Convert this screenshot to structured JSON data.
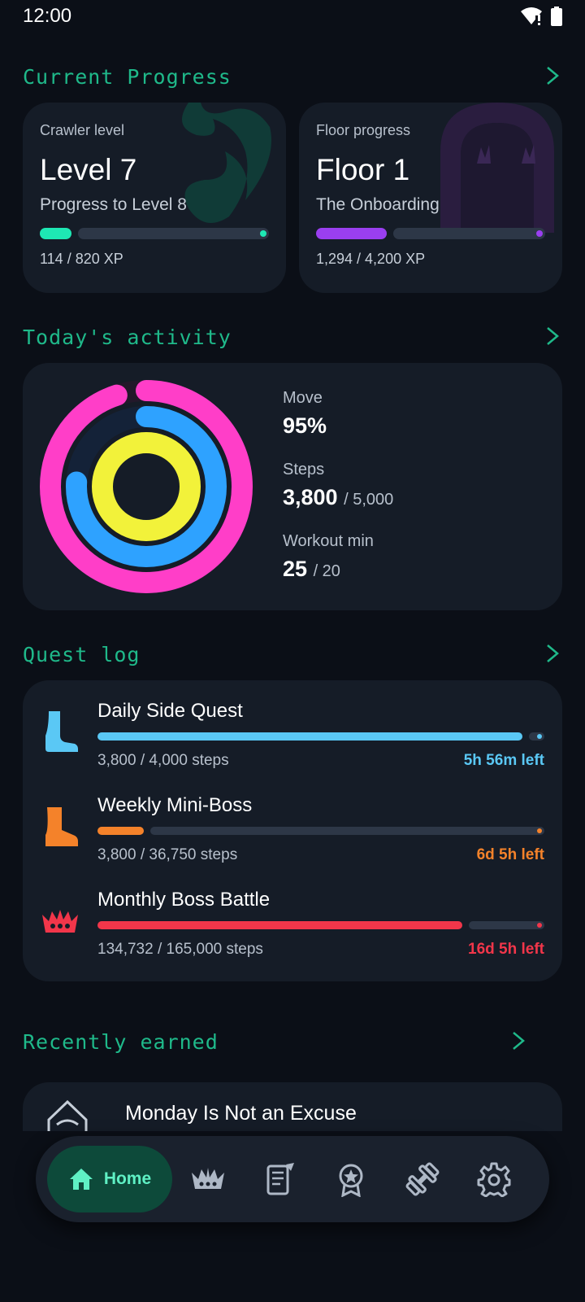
{
  "status_bar": {
    "time": "12:00",
    "icons": [
      "wifi-warning-icon",
      "battery-icon"
    ]
  },
  "sections": {
    "current_progress": "Current Progress",
    "todays_activity": "Today's activity",
    "quest_log": "Quest log",
    "recently_earned": "Recently earned"
  },
  "crawler": {
    "label": "Crawler level",
    "value": "Level 7",
    "sub": "Progress to Level 8",
    "xp": "114 / 820 XP",
    "progress": 0.139,
    "color": "#1ee8b4",
    "icon": "flame-swirl-icon"
  },
  "floor": {
    "label": "Floor progress",
    "value": "Floor 1",
    "sub": "The Onboarding",
    "xp": "1,294 / 4,200 XP",
    "progress": 0.308,
    "color": "#9a3ff0",
    "icon": "dungeon-door-icon"
  },
  "activity": {
    "move_label": "Move",
    "move_value": "95%",
    "steps_label": "Steps",
    "steps_value": "3,800",
    "steps_goal": "/ 5,000",
    "workout_label": "Workout min",
    "workout_value": "25",
    "workout_goal": "/ 20",
    "rings": {
      "move": 0.95,
      "steps": 0.76,
      "workout": 1.25
    },
    "colors": {
      "move": "#ff3ec8",
      "steps": "#2ea2ff",
      "workout": "#f2f23a"
    }
  },
  "quests": [
    {
      "title": "Daily Side Quest",
      "count": "3,800 / 4,000 steps",
      "time_left": "5h 56m left",
      "progress": 0.95,
      "color": "#5ac8f5",
      "icon": "foot-icon"
    },
    {
      "title": "Weekly Mini-Boss",
      "count": "3,800 / 36,750 steps",
      "time_left": "6d 5h left",
      "progress": 0.103,
      "color": "#f4822a",
      "icon": "boot-icon"
    },
    {
      "title": "Monthly Boss Battle",
      "count": "134,732 / 165,000 steps",
      "time_left": "16d 5h left",
      "progress": 0.817,
      "color": "#f2364a",
      "icon": "crown-monster-icon"
    }
  ],
  "recently_earned": {
    "title": "Monday Is Not an Excuse",
    "icon": "achievement-badge-icon"
  },
  "nav": {
    "home_label": "Home",
    "items": [
      "home-icon",
      "boss-crown-icon",
      "quest-scroll-icon",
      "medal-icon",
      "dumbbell-icon",
      "settings-gear-icon"
    ]
  }
}
